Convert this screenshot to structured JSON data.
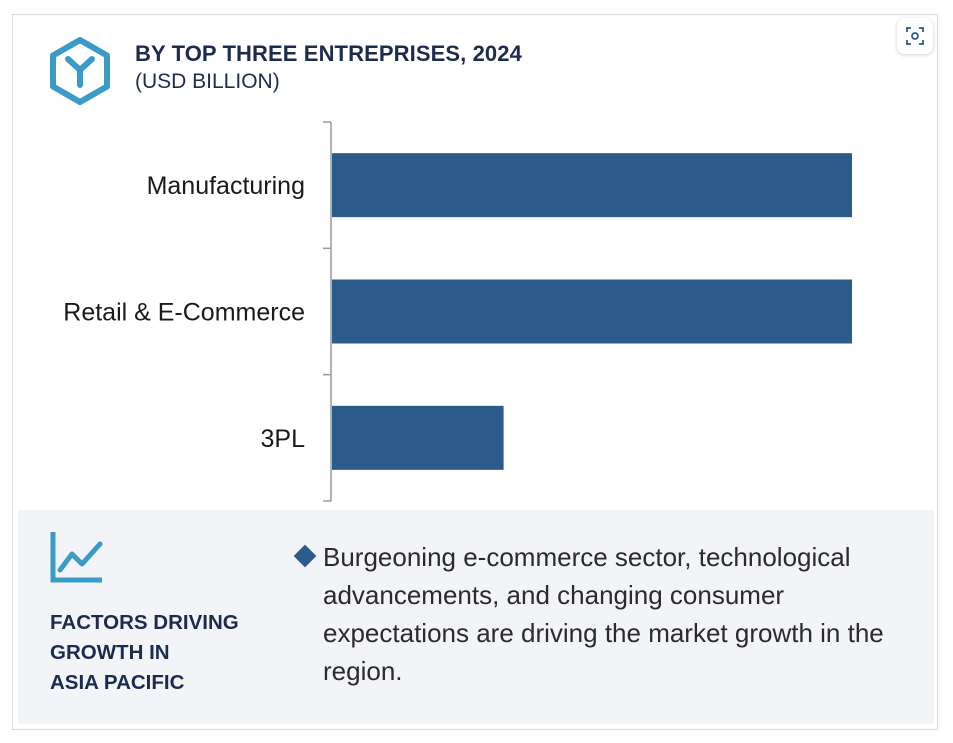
{
  "header": {
    "title": "BY TOP THREE ENTREPRISES, 2024",
    "subtitle": "(USD BILLION)"
  },
  "chart_data": {
    "type": "bar",
    "orientation": "horizontal",
    "categories": [
      "Manufacturing",
      "Retail & E-Commerce",
      "3PL"
    ],
    "values": [
      100,
      100,
      33
    ],
    "xlim": [
      0,
      100
    ],
    "bar_color": "#2c5a8a",
    "grid": false,
    "legend": "none"
  },
  "factors": {
    "label_lines": [
      "FACTORS DRIVING",
      "GROWTH IN",
      "ASIA PACIFIC"
    ],
    "text": "Burgeoning e-commerce sector, technological advancements, and changing consumer expectations are driving the market growth in the region."
  },
  "colors": {
    "accent": "#3a9cc6",
    "bar": "#2c5a8a",
    "title": "#1d2b4f",
    "panel_bg": "#f2f4f7"
  },
  "icons": {
    "logo": "hexagon-y-logo",
    "expand": "expand-image-icon",
    "trend": "trend-chart-icon",
    "bullet": "diamond-bullet-icon"
  }
}
